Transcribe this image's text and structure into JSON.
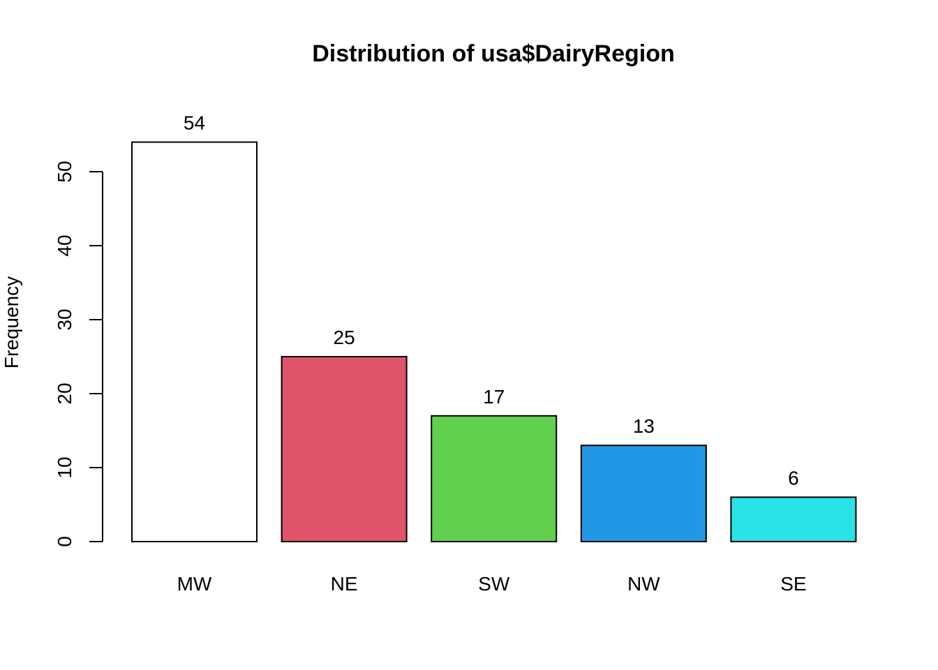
{
  "chart_data": {
    "type": "bar",
    "title": "Distribution of usa$DairyRegion",
    "xlabel": "",
    "ylabel": "Frequency",
    "categories": [
      "MW",
      "NE",
      "SW",
      "NW",
      "SE"
    ],
    "values": [
      54,
      25,
      17,
      13,
      6
    ],
    "value_labels": [
      "54",
      "25",
      "17",
      "13",
      "6"
    ],
    "colors": [
      "#ffffff",
      "#df536b",
      "#61d04f",
      "#2297e6",
      "#28e2e5"
    ],
    "ylim": [
      0,
      54
    ],
    "yticks": [
      0,
      10,
      20,
      30,
      40,
      50
    ],
    "ytick_labels": [
      "0",
      "10",
      "20",
      "30",
      "40",
      "50"
    ],
    "grid": false,
    "legend": "none"
  }
}
